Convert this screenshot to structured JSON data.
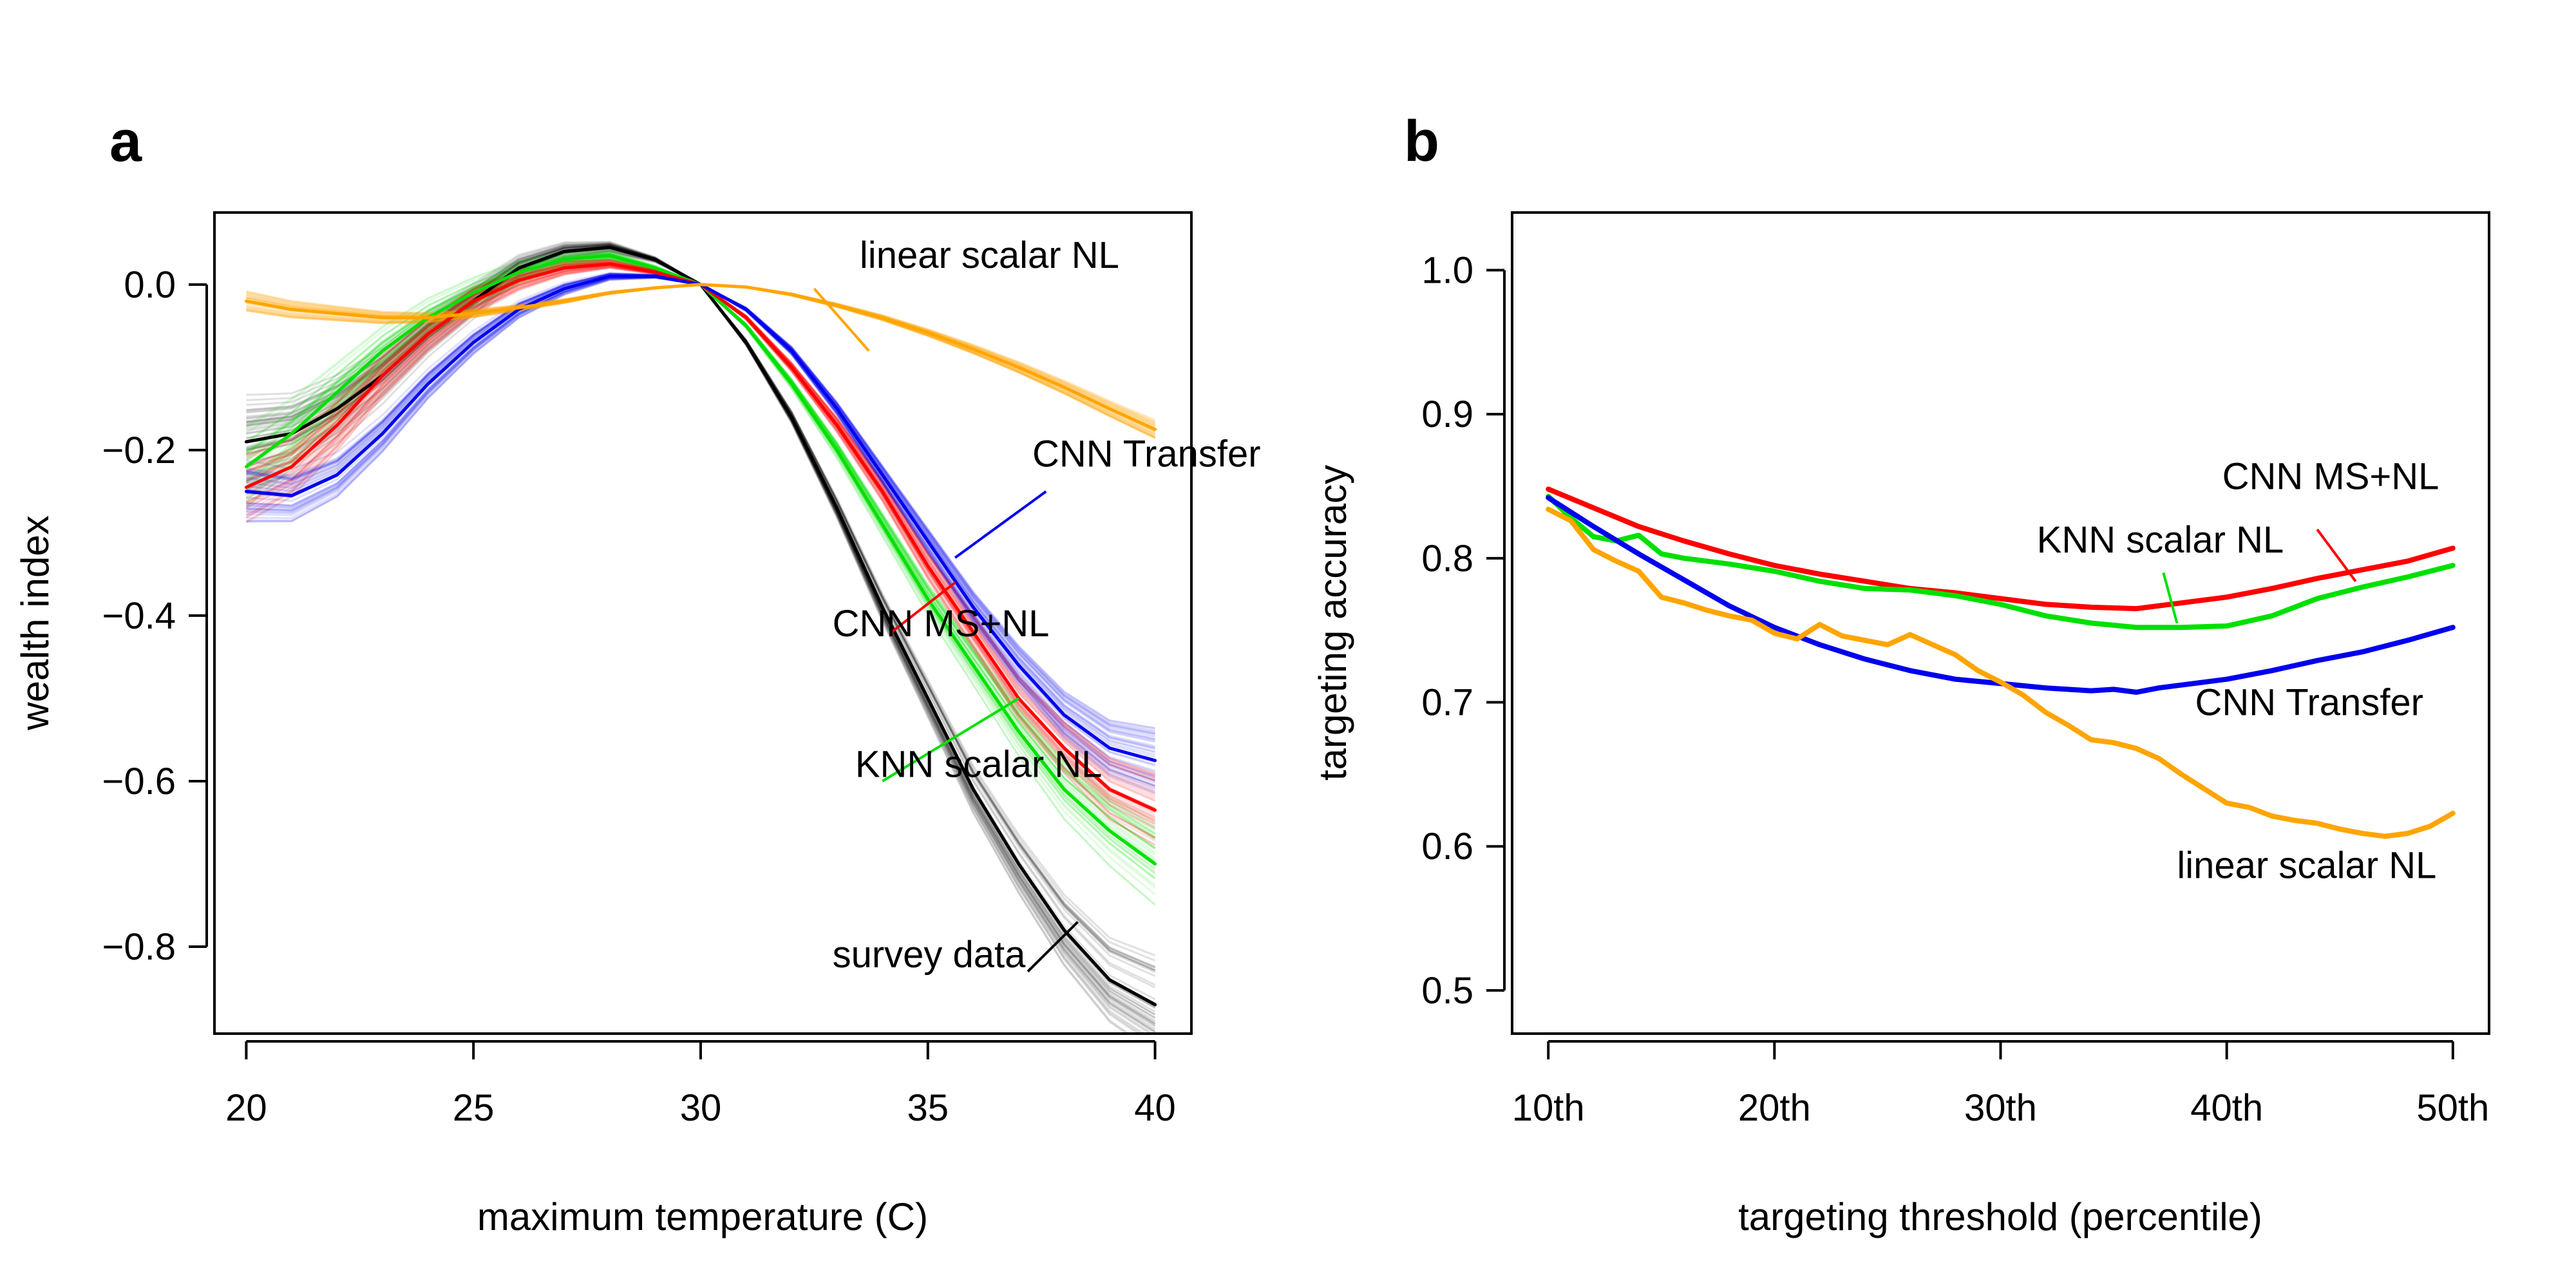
{
  "chart_data": [
    {
      "panel": "a",
      "type": "line",
      "xlabel": "maximum temperature (C)",
      "ylabel": "wealth index",
      "xlim": [
        19.3,
        40.8
      ],
      "ylim": [
        -0.905,
        0.087
      ],
      "xticks": [
        20,
        25,
        30,
        35,
        40
      ],
      "yticks": [
        0.0,
        -0.2,
        -0.4,
        -0.6,
        -0.8
      ],
      "ytick_labels": [
        "0.0",
        "−0.2",
        "−0.4",
        "−0.6",
        "−0.8"
      ],
      "grid": false,
      "legend": "none (direct line annotations)",
      "series": [
        {
          "name": "survey data",
          "color": "#000000",
          "spread": 0.06,
          "x": [
            20,
            21,
            22,
            23,
            24,
            25,
            26,
            27,
            28,
            29,
            30,
            31,
            32,
            33,
            34,
            35,
            36,
            37,
            38,
            39,
            40
          ],
          "y": [
            -0.19,
            -0.18,
            -0.15,
            -0.11,
            -0.06,
            -0.02,
            0.02,
            0.04,
            0.045,
            0.03,
            0.0,
            -0.07,
            -0.16,
            -0.27,
            -0.39,
            -0.5,
            -0.61,
            -0.7,
            -0.78,
            -0.84,
            -0.87
          ]
        },
        {
          "name": "KNN scalar NL",
          "color": "#00e000",
          "spread": 0.05,
          "x": [
            20,
            21,
            22,
            23,
            24,
            25,
            26,
            27,
            28,
            29,
            30,
            31,
            32,
            33,
            34,
            35,
            36,
            37,
            38,
            39,
            40
          ],
          "y": [
            -0.22,
            -0.18,
            -0.13,
            -0.08,
            -0.04,
            -0.01,
            0.015,
            0.03,
            0.035,
            0.02,
            0.0,
            -0.05,
            -0.12,
            -0.2,
            -0.29,
            -0.38,
            -0.46,
            -0.54,
            -0.61,
            -0.66,
            -0.7
          ]
        },
        {
          "name": "CNN MS+NL",
          "color": "#ff0000",
          "spread": 0.045,
          "x": [
            20,
            21,
            22,
            23,
            24,
            25,
            26,
            27,
            28,
            29,
            30,
            31,
            32,
            33,
            34,
            35,
            36,
            37,
            38,
            39,
            40
          ],
          "y": [
            -0.245,
            -0.22,
            -0.17,
            -0.11,
            -0.06,
            -0.02,
            0.005,
            0.02,
            0.025,
            0.015,
            0.0,
            -0.04,
            -0.1,
            -0.17,
            -0.25,
            -0.34,
            -0.42,
            -0.5,
            -0.56,
            -0.61,
            -0.635
          ]
        },
        {
          "name": "CNN  Transfer",
          "color": "#0000ee",
          "spread": 0.04,
          "x": [
            20,
            21,
            22,
            23,
            24,
            25,
            26,
            27,
            28,
            29,
            30,
            31,
            32,
            33,
            34,
            35,
            36,
            37,
            38,
            39,
            40
          ],
          "y": [
            -0.25,
            -0.255,
            -0.23,
            -0.18,
            -0.12,
            -0.07,
            -0.03,
            -0.005,
            0.01,
            0.01,
            0.0,
            -0.03,
            -0.08,
            -0.15,
            -0.23,
            -0.31,
            -0.39,
            -0.46,
            -0.52,
            -0.56,
            -0.575
          ]
        },
        {
          "name": "linear scalar NL",
          "color": "#ffa500",
          "spread": 0.012,
          "x": [
            20,
            21,
            22,
            23,
            24,
            25,
            26,
            27,
            28,
            29,
            30,
            31,
            32,
            33,
            34,
            35,
            36,
            37,
            38,
            39,
            40
          ],
          "y": [
            -0.02,
            -0.03,
            -0.035,
            -0.04,
            -0.04,
            -0.035,
            -0.028,
            -0.02,
            -0.01,
            -0.004,
            0.0,
            -0.003,
            -0.012,
            -0.025,
            -0.04,
            -0.058,
            -0.078,
            -0.1,
            -0.124,
            -0.15,
            -0.175
          ]
        }
      ],
      "annotations": [
        {
          "text": "linear scalar NL",
          "series": "linear scalar NL",
          "x": 33.5,
          "y": 0.02,
          "pointer": [
            32.5,
            -0.005,
            33.7,
            -0.08
          ]
        },
        {
          "text": "CNN  Transfer",
          "series": "CNN  Transfer",
          "x": 37.3,
          "y": -0.22,
          "pointer": [
            37.6,
            -0.25,
            35.6,
            -0.33
          ]
        },
        {
          "text": "CNN MS+NL",
          "series": "CNN MS+NL",
          "x": 32.9,
          "y": -0.425,
          "pointer": [
            34.2,
            -0.42,
            35.6,
            -0.36
          ]
        },
        {
          "text": "KNN scalar NL",
          "series": "KNN scalar NL",
          "x": 33.4,
          "y": -0.595,
          "pointer": [
            34.0,
            -0.6,
            37.0,
            -0.5
          ]
        },
        {
          "text": "survey data",
          "series": "survey data",
          "x": 32.9,
          "y": -0.825,
          "pointer": [
            37.2,
            -0.83,
            38.3,
            -0.77
          ]
        }
      ]
    },
    {
      "panel": "b",
      "type": "line",
      "xlabel": "targeting threshold (percentile)",
      "ylabel": "targeting accuracy",
      "xlim": [
        8.4,
        51.6
      ],
      "ylim": [
        0.47,
        1.04
      ],
      "xticks": [
        10,
        20,
        30,
        40,
        50
      ],
      "xtick_labels": [
        "10th",
        "20th",
        "30th",
        "40th",
        "50th"
      ],
      "yticks": [
        0.5,
        0.6,
        0.7,
        0.8,
        0.9,
        1.0
      ],
      "ytick_labels": [
        "0.5",
        "0.6",
        "0.7",
        "0.8",
        "0.9",
        "1.0"
      ],
      "grid": false,
      "legend": "none (direct line annotations)",
      "series": [
        {
          "name": "CNN MS+NL",
          "color": "#ff0000",
          "x": [
            10,
            12,
            14,
            16,
            18,
            20,
            22,
            24,
            26,
            28,
            30,
            32,
            34,
            36,
            38,
            40,
            42,
            44,
            46,
            48,
            50
          ],
          "y": [
            0.848,
            0.835,
            0.822,
            0.812,
            0.803,
            0.795,
            0.789,
            0.784,
            0.779,
            0.776,
            0.772,
            0.768,
            0.766,
            0.765,
            0.769,
            0.773,
            0.779,
            0.786,
            0.792,
            0.798,
            0.807
          ]
        },
        {
          "name": "KNN scalar NL",
          "color": "#00e000",
          "x": [
            10,
            11,
            12,
            13,
            14,
            15,
            16,
            18,
            20,
            22,
            24,
            26,
            28,
            30,
            32,
            34,
            36,
            38,
            40,
            42,
            44,
            46,
            48,
            50
          ],
          "y": [
            0.843,
            0.828,
            0.815,
            0.812,
            0.816,
            0.803,
            0.8,
            0.796,
            0.791,
            0.784,
            0.779,
            0.778,
            0.774,
            0.768,
            0.76,
            0.755,
            0.752,
            0.752,
            0.753,
            0.76,
            0.772,
            0.78,
            0.787,
            0.795
          ]
        },
        {
          "name": "CNN  Transfer",
          "color": "#0000ee",
          "x": [
            10,
            12,
            14,
            16,
            18,
            20,
            22,
            24,
            26,
            28,
            30,
            32,
            34,
            35,
            36,
            37,
            38,
            40,
            42,
            44,
            46,
            48,
            50
          ],
          "y": [
            0.842,
            0.822,
            0.803,
            0.785,
            0.767,
            0.752,
            0.74,
            0.73,
            0.722,
            0.716,
            0.713,
            0.71,
            0.708,
            0.709,
            0.707,
            0.71,
            0.712,
            0.716,
            0.722,
            0.729,
            0.735,
            0.743,
            0.752
          ]
        },
        {
          "name": "linear scalar NL",
          "color": "#ffa500",
          "x": [
            10,
            11,
            12,
            13,
            14,
            15,
            16,
            17,
            18,
            19,
            20,
            21,
            22,
            23,
            24,
            25,
            26,
            27,
            28,
            29,
            30,
            31,
            32,
            33,
            34,
            35,
            36,
            37,
            38,
            39,
            40,
            41,
            42,
            43,
            44,
            45,
            46,
            47,
            48,
            49,
            50
          ],
          "y": [
            0.834,
            0.826,
            0.806,
            0.798,
            0.791,
            0.773,
            0.769,
            0.764,
            0.76,
            0.757,
            0.748,
            0.744,
            0.754,
            0.746,
            0.743,
            0.74,
            0.747,
            0.74,
            0.733,
            0.722,
            0.714,
            0.705,
            0.693,
            0.684,
            0.674,
            0.672,
            0.668,
            0.661,
            0.65,
            0.64,
            0.63,
            0.627,
            0.621,
            0.618,
            0.616,
            0.612,
            0.609,
            0.607,
            0.609,
            0.614,
            0.623
          ]
        }
      ],
      "annotations": [
        {
          "text": "CNN MS+NL",
          "series": "CNN MS+NL",
          "x": 39.8,
          "y": 0.848,
          "pointer": [
            44.0,
            0.82,
            45.7,
            0.784
          ]
        },
        {
          "text": "KNN scalar NL",
          "series": "KNN scalar NL",
          "x": 31.6,
          "y": 0.804,
          "pointer": [
            37.2,
            0.79,
            37.8,
            0.755
          ]
        },
        {
          "text": "CNN  Transfer",
          "series": "CNN  Transfer",
          "x": 38.6,
          "y": 0.691,
          "pointer": null
        },
        {
          "text": "linear scalar NL",
          "series": "linear scalar NL",
          "x": 37.8,
          "y": 0.578,
          "pointer": null
        }
      ]
    }
  ]
}
